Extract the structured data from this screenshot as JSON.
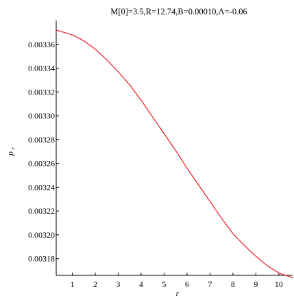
{
  "chart_data": {
    "type": "line",
    "title": "M[0]=3.5,R=12.74,B=0.00010,Λ=-0.06",
    "xlabel": "r",
    "ylabel": "p",
    "ylabel_subscript": "r",
    "xlim": [
      0.3,
      10.6
    ],
    "ylim": [
      0.003166,
      0.00338
    ],
    "x_ticks": [
      {
        "value": 1,
        "label": "1"
      },
      {
        "value": 2,
        "label": "2"
      },
      {
        "value": 3,
        "label": "3"
      },
      {
        "value": 4,
        "label": "4"
      },
      {
        "value": 5,
        "label": "5"
      },
      {
        "value": 6,
        "label": "6"
      },
      {
        "value": 7,
        "label": "7"
      },
      {
        "value": 8,
        "label": "8"
      },
      {
        "value": 9,
        "label": "9"
      },
      {
        "value": 10,
        "label": "10"
      }
    ],
    "y_ticks": [
      {
        "value": 0.00318,
        "label": "0.00318"
      },
      {
        "value": 0.0032,
        "label": "0.00320"
      },
      {
        "value": 0.00322,
        "label": "0.00322"
      },
      {
        "value": 0.00324,
        "label": "0.00324"
      },
      {
        "value": 0.00326,
        "label": "0.00326"
      },
      {
        "value": 0.00328,
        "label": "0.00328"
      },
      {
        "value": 0.0033,
        "label": "0.00330"
      },
      {
        "value": 0.00332,
        "label": "0.00332"
      },
      {
        "value": 0.00334,
        "label": "0.00334"
      },
      {
        "value": 0.00336,
        "label": "0.00336"
      }
    ],
    "grid": false,
    "series": [
      {
        "color": "#e8191e",
        "x": [
          0.3,
          1,
          1.5,
          2,
          2.5,
          3,
          3.5,
          4,
          4.5,
          5,
          5.5,
          6,
          6.5,
          7,
          7.5,
          8,
          8.5,
          9,
          9.5,
          10,
          10.6
        ],
        "y": [
          0.003372,
          0.003368,
          0.003363,
          0.003356,
          0.003347,
          0.003337,
          0.003326,
          0.003313,
          0.003299,
          0.003285,
          0.003271,
          0.003256,
          0.003242,
          0.003228,
          0.003214,
          0.003201,
          0.003191,
          0.003182,
          0.003174,
          0.003168,
          0.003164
        ]
      }
    ]
  }
}
